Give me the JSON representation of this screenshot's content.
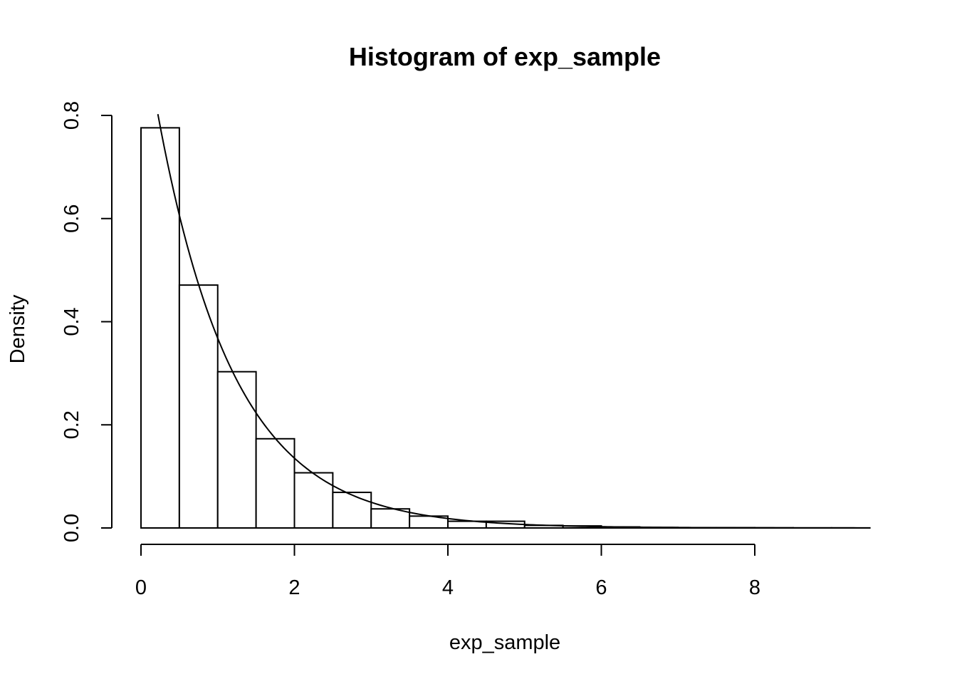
{
  "chart_data": {
    "type": "bar",
    "title": "Histogram of exp_sample",
    "xlabel": "exp_sample",
    "ylabel": "Density",
    "bin_width": 0.5,
    "bin_starts": [
      0,
      0.5,
      1,
      1.5,
      2,
      2.5,
      3,
      3.5,
      4,
      4.5,
      5,
      5.5,
      6,
      6.5,
      7,
      7.5,
      8,
      8.5,
      9
    ],
    "values": [
      0.776,
      0.471,
      0.303,
      0.173,
      0.107,
      0.069,
      0.037,
      0.023,
      0.013,
      0.013,
      0.005,
      0.004,
      0.002,
      0.001,
      0.0006,
      0.0006,
      0.0004,
      0.0002,
      0.0002
    ],
    "xlim": [
      0,
      9.5
    ],
    "ylim": [
      0,
      0.8
    ],
    "x_ticks": [
      0,
      2,
      4,
      6,
      8
    ],
    "x_tick_labels": [
      "0",
      "2",
      "4",
      "6",
      "8"
    ],
    "y_ticks": [
      0,
      0.2,
      0.4,
      0.6,
      0.8
    ],
    "y_tick_labels": [
      "0.0",
      "0.2",
      "0.4",
      "0.6",
      "0.8"
    ],
    "overlay": {
      "type": "line",
      "function": "density",
      "rate": 1,
      "x_range": [
        0.22,
        9.5
      ]
    },
    "grid": false,
    "legend": "none"
  }
}
